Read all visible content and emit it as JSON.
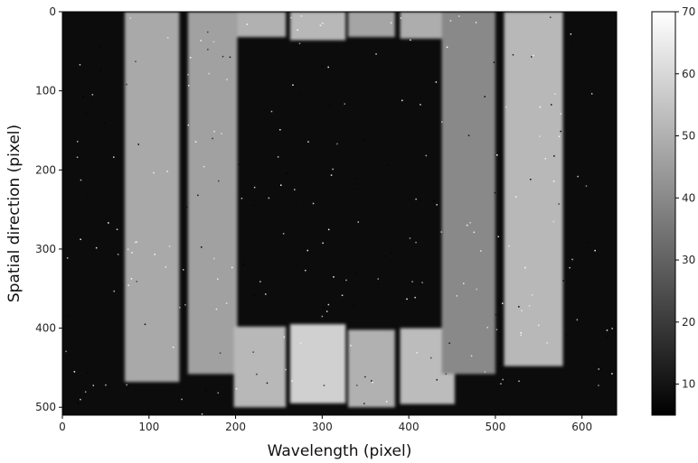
{
  "chart_data": {
    "type": "heatmap",
    "title": "",
    "xlabel": "Wavelength (pixel)",
    "ylabel": "Spatial direction (pixel)",
    "xlim": [
      0,
      640
    ],
    "ylim": [
      510,
      0
    ],
    "xticks": [
      "0",
      "100",
      "200",
      "300",
      "400",
      "500",
      "600"
    ],
    "yticks": [
      "0",
      "100",
      "200",
      "300",
      "400",
      "500"
    ],
    "colormap": "gray",
    "colorbar": {
      "min": 5,
      "max": 70,
      "ticks": [
        "10",
        "20",
        "30",
        "40",
        "50",
        "60",
        "70"
      ]
    },
    "background_level": 8,
    "regions": [
      {
        "x0": 72,
        "x1": 135,
        "y0": 0,
        "y1": 468,
        "value": 48
      },
      {
        "x0": 145,
        "x1": 202,
        "y0": 0,
        "y1": 458,
        "value": 46
      },
      {
        "x0": 202,
        "x1": 258,
        "y0": 0,
        "y1": 32,
        "value": 50
      },
      {
        "x0": 198,
        "x1": 258,
        "y0": 398,
        "y1": 500,
        "value": 52
      },
      {
        "x0": 263,
        "x1": 327,
        "y0": 0,
        "y1": 36,
        "value": 52
      },
      {
        "x0": 263,
        "x1": 327,
        "y0": 395,
        "y1": 495,
        "value": 58
      },
      {
        "x0": 330,
        "x1": 384,
        "y0": 0,
        "y1": 32,
        "value": 47
      },
      {
        "x0": 330,
        "x1": 384,
        "y0": 402,
        "y1": 500,
        "value": 50
      },
      {
        "x0": 390,
        "x1": 453,
        "y0": 0,
        "y1": 34,
        "value": 49
      },
      {
        "x0": 390,
        "x1": 453,
        "y0": 400,
        "y1": 496,
        "value": 53
      },
      {
        "x0": 438,
        "x1": 500,
        "y0": 0,
        "y1": 458,
        "value": 40
      },
      {
        "x0": 510,
        "x1": 578,
        "y0": 0,
        "y1": 448,
        "value": 52
      }
    ]
  }
}
